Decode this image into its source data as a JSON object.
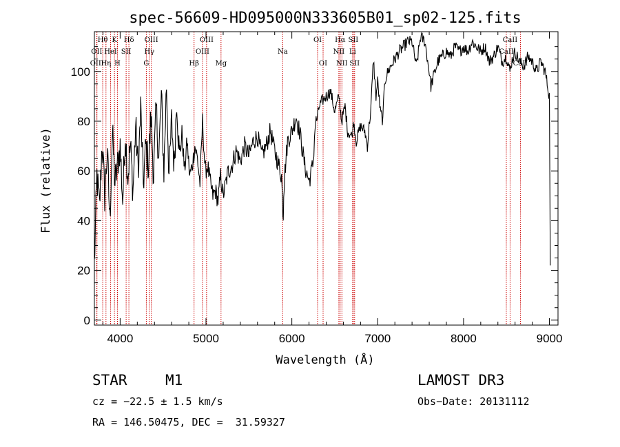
{
  "chart_data": {
    "type": "line",
    "title": "spec-56609-HD095000N333605B01_sp02-125.fits",
    "xlabel": "Wavelength (Å)",
    "ylabel": "Flux (relative)",
    "xlim": [
      3700,
      9100
    ],
    "ylim": [
      -2,
      116
    ],
    "xticks": [
      4000,
      5000,
      6000,
      7000,
      8000,
      9000
    ],
    "yticks": [
      0,
      20,
      40,
      60,
      80,
      100
    ],
    "series": [
      {
        "name": "spectrum",
        "x": [
          3700,
          3730,
          3760,
          3790,
          3820,
          3850,
          3880,
          3910,
          3940,
          3970,
          4000,
          4030,
          4060,
          4090,
          4120,
          4150,
          4180,
          4210,
          4240,
          4270,
          4300,
          4330,
          4360,
          4390,
          4420,
          4450,
          4480,
          4510,
          4540,
          4570,
          4600,
          4630,
          4660,
          4690,
          4720,
          4750,
          4780,
          4810,
          4840,
          4870,
          4900,
          4930,
          4960,
          4990,
          5020,
          5050,
          5080,
          5110,
          5140,
          5170,
          5200,
          5230,
          5260,
          5300,
          5350,
          5400,
          5450,
          5500,
          5550,
          5600,
          5650,
          5700,
          5750,
          5800,
          5850,
          5880,
          5895,
          5900,
          5905,
          5920,
          5950,
          6000,
          6050,
          6100,
          6150,
          6200,
          6230,
          6250,
          6270,
          6300,
          6320,
          6350,
          6400,
          6450,
          6500,
          6550,
          6580,
          6620,
          6650,
          6700,
          6720,
          6750,
          6800,
          6850,
          6880,
          6900,
          6920,
          6950,
          6980,
          7000,
          7030,
          7060,
          7080,
          7100,
          7120,
          7150,
          7200,
          7250,
          7300,
          7350,
          7400,
          7450,
          7500,
          7550,
          7600,
          7620,
          7650,
          7700,
          7750,
          7800,
          7850,
          7900,
          7950,
          8000,
          8050,
          8100,
          8150,
          8200,
          8250,
          8300,
          8350,
          8400,
          8450,
          8500,
          8540,
          8560,
          8600,
          8650,
          8700,
          8750,
          8800,
          8850,
          8900,
          8950,
          8980,
          9000,
          9010
        ],
        "y": [
          22,
          58,
          45,
          72,
          50,
          68,
          40,
          75,
          55,
          62,
          70,
          48,
          75,
          58,
          70,
          52,
          78,
          60,
          85,
          55,
          70,
          62,
          82,
          58,
          85,
          65,
          90,
          60,
          95,
          58,
          80,
          62,
          90,
          65,
          75,
          60,
          72,
          58,
          62,
          70,
          65,
          55,
          80,
          60,
          62,
          55,
          50,
          52,
          48,
          58,
          50,
          55,
          60,
          62,
          68,
          64,
          70,
          66,
          72,
          74,
          66,
          70,
          76,
          68,
          62,
          58,
          45,
          42,
          52,
          60,
          72,
          76,
          82,
          74,
          62,
          56,
          60,
          64,
          78,
          82,
          86,
          88,
          90,
          92,
          84,
          90,
          80,
          86,
          76,
          74,
          80,
          72,
          78,
          76,
          70,
          78,
          85,
          105,
          90,
          96,
          84,
          80,
          96,
          98,
          100,
          102,
          105,
          108,
          110,
          112,
          112,
          102,
          114,
          112,
          100,
          94,
          98,
          104,
          106,
          108,
          106,
          110,
          108,
          110,
          108,
          112,
          110,
          108,
          110,
          104,
          106,
          110,
          104,
          106,
          100,
          104,
          108,
          104,
          102,
          106,
          104,
          100,
          104,
          100,
          94,
          90,
          22
        ]
      }
    ],
    "spectral_lines": [
      {
        "label": "Hθ",
        "x": 3797,
        "tier": 1
      },
      {
        "label": "OII",
        "x": 3727,
        "tier": 2
      },
      {
        "label": "OIII",
        "x": 3730,
        "tier": 3
      },
      {
        "label": "K",
        "x": 3934,
        "tier": 1
      },
      {
        "label": "HeI",
        "x": 3889,
        "tier": 2
      },
      {
        "label": "Hη",
        "x": 3835,
        "tier": 3
      },
      {
        "label": "Hδ",
        "x": 4102,
        "tier": 1
      },
      {
        "label": "SII",
        "x": 4070,
        "tier": 2
      },
      {
        "label": "H",
        "x": 3969,
        "tier": 3
      },
      {
        "label": "OIII",
        "x": 4363,
        "tier": 1
      },
      {
        "label": "Hγ",
        "x": 4340,
        "tier": 2
      },
      {
        "label": "G",
        "x": 4305,
        "tier": 3
      },
      {
        "label": "OIII",
        "x": 5007,
        "tier": 1
      },
      {
        "label": "OIII",
        "x": 4959,
        "tier": 2
      },
      {
        "label": "Hβ",
        "x": 4861,
        "tier": 3
      },
      {
        "label": "Mg",
        "x": 5175,
        "tier": 3
      },
      {
        "label": "Na",
        "x": 5893,
        "tier": 2
      },
      {
        "label": "OI",
        "x": 6300,
        "tier": 1
      },
      {
        "label": "OI",
        "x": 6364,
        "tier": 3
      },
      {
        "label": "Hα",
        "x": 6563,
        "tier": 1
      },
      {
        "label": "SII",
        "x": 6716,
        "tier": 1
      },
      {
        "label": "NII",
        "x": 6548,
        "tier": 2
      },
      {
        "label": "Li",
        "x": 6708,
        "tier": 2
      },
      {
        "label": "NII",
        "x": 6583,
        "tier": 3
      },
      {
        "label": "SII",
        "x": 6731,
        "tier": 3
      },
      {
        "label": "CaII",
        "x": 8542,
        "tier": 1
      },
      {
        "label": "CaII",
        "x": 8498,
        "tier": 2
      },
      {
        "label": "CaII",
        "x": 8662,
        "tier": 3
      }
    ]
  },
  "info": {
    "object_class": "STAR",
    "subclass": "M1",
    "survey": "LAMOST DR3",
    "cz": "cz = −22.5 ± 1.5 km/s",
    "obs_date": "Obs−Date: 20131112",
    "coords": "RA = 146.50475, DEC =  31.59327"
  },
  "colors": {
    "axes": "#000000",
    "spectrum": "#000000",
    "line_marker": "#cc0000"
  }
}
